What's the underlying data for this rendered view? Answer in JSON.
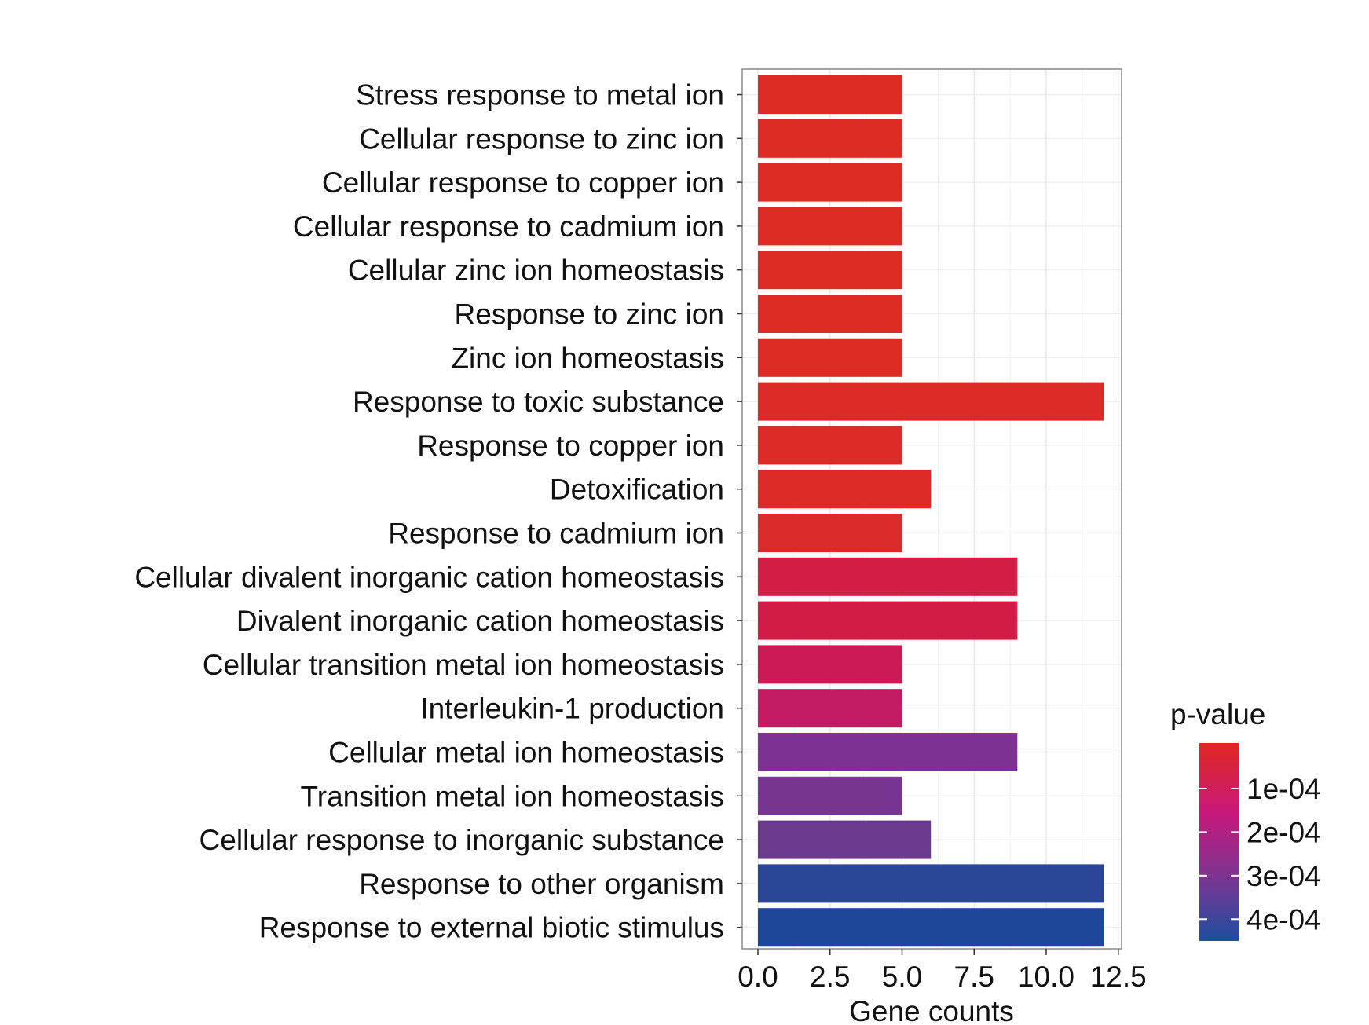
{
  "chart_data": {
    "type": "bar",
    "orientation": "horizontal",
    "title": "",
    "xlabel": "Gene counts",
    "ylabel": "",
    "xlim": [
      0,
      12.5
    ],
    "xticks": [
      0,
      2.5,
      5,
      7.5,
      10,
      12.5
    ],
    "xtick_labels": [
      "0.0",
      "2.5",
      "5.0",
      "7.5",
      "10.0",
      "12.5"
    ],
    "categories": [
      "Stress response to metal ion",
      "Cellular response to zinc ion",
      "Cellular response to copper ion",
      "Cellular response to cadmium ion",
      "Cellular zinc ion homeostasis",
      "Response to zinc ion",
      "Zinc ion homeostasis",
      "Response to toxic substance",
      "Response to copper ion",
      "Detoxification",
      "Response to cadmium ion",
      "Cellular divalent inorganic cation homeostasis",
      "Divalent inorganic cation homeostasis",
      "Cellular transition metal ion homeostasis",
      "Interleukin-1 production",
      "Cellular metal ion homeostasis",
      "Transition metal ion homeostasis",
      "Cellular response to inorganic substance",
      "Response to other organism",
      "Response to external biotic stimulus"
    ],
    "values": [
      5,
      5,
      5,
      5,
      5,
      5,
      5,
      12,
      5,
      6,
      5,
      9,
      9,
      5,
      5,
      9,
      5,
      6,
      12,
      12
    ],
    "colors": [
      "#dd2a22",
      "#dd2a22",
      "#dd2a22",
      "#dd2a22",
      "#dd2a22",
      "#dd2a22",
      "#dd2a22",
      "#dc2a26",
      "#dc2a26",
      "#db2a28",
      "#da2a2a",
      "#d21d45",
      "#d11c48",
      "#cc1a56",
      "#c51a64",
      "#7d3192",
      "#773490",
      "#6a3a8e",
      "#2a4597",
      "#1e4799"
    ],
    "legend": {
      "title": "p-value",
      "type": "colorbar",
      "placement": "right",
      "stops": [
        "#e02820",
        "#c8187a",
        "#7a3490",
        "#1f4fa0"
      ],
      "tick_labels": [
        "1e-04",
        "2e-04",
        "3e-04",
        "4e-04"
      ]
    },
    "grid": true
  }
}
